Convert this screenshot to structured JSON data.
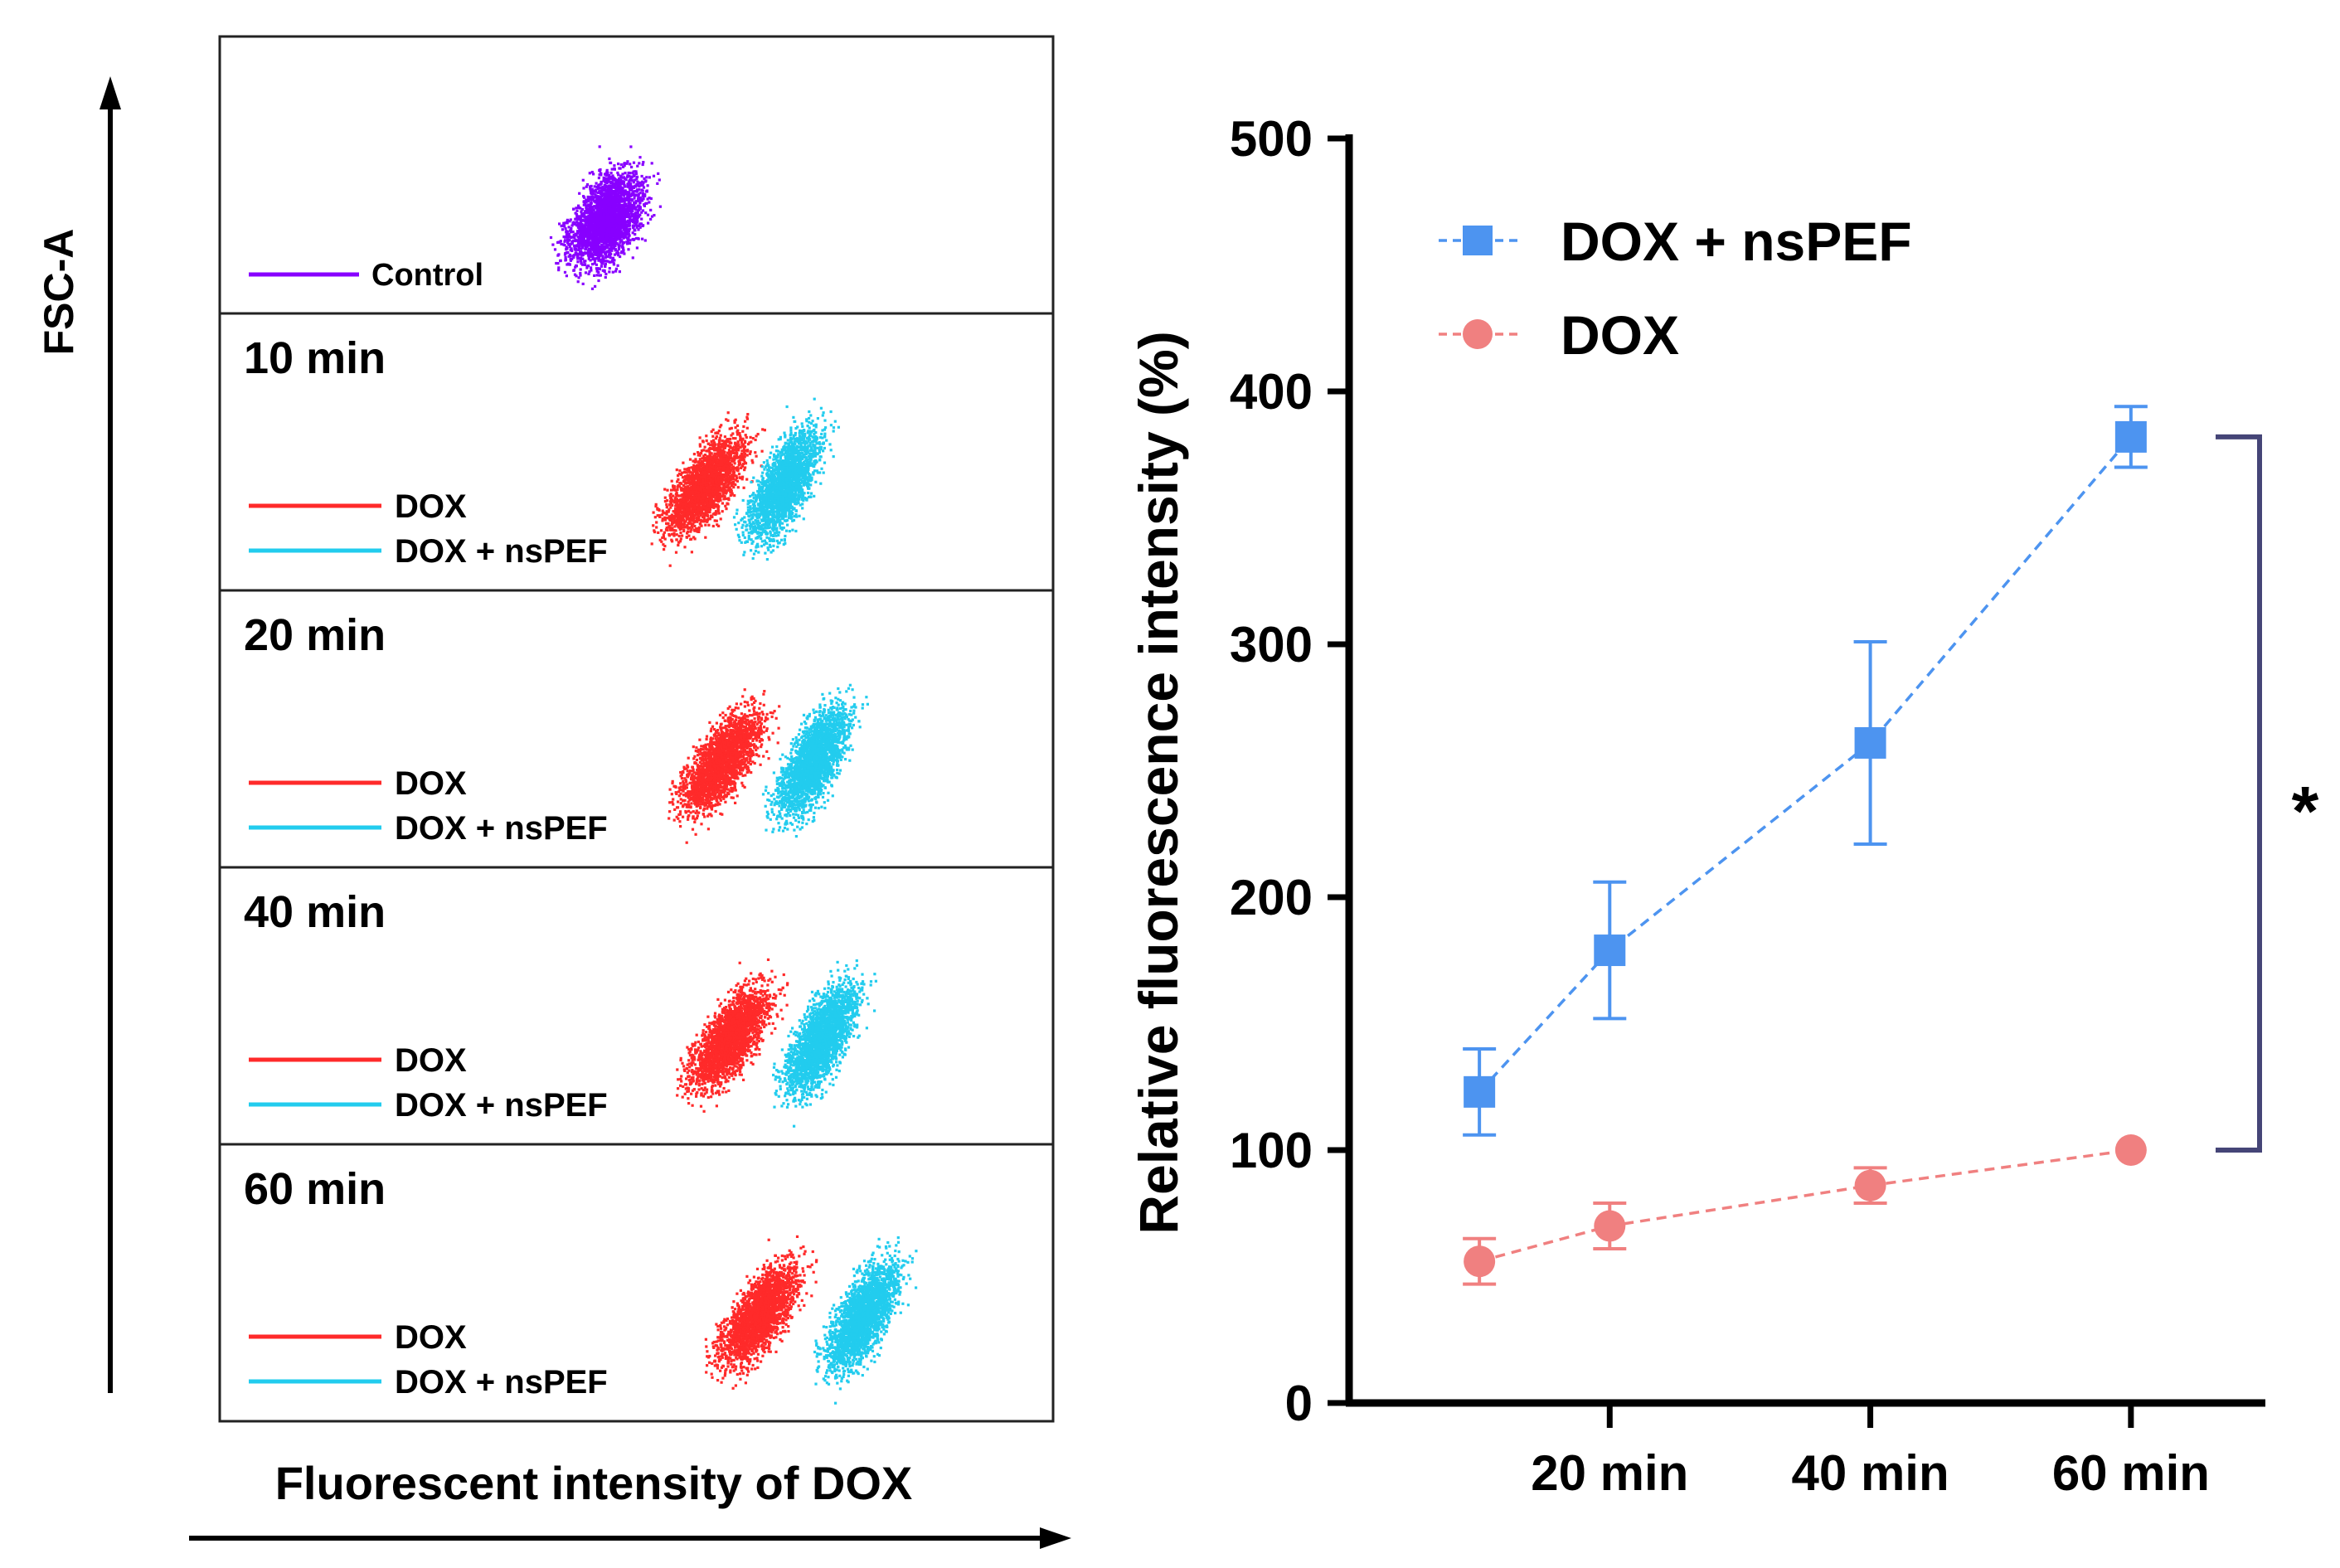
{
  "left_panel": {
    "y_axis_label": "FSC-A",
    "x_axis_label": "Fluorescent intensity of DOX",
    "panels": [
      {
        "time": "",
        "legend": [
          {
            "label": "Control",
            "color": "#8800ff"
          }
        ]
      },
      {
        "time": "10 min",
        "legend": [
          {
            "label": "DOX",
            "color": "#ff2a2a"
          },
          {
            "label": "DOX + nsPEF",
            "color": "#22ccee"
          }
        ]
      },
      {
        "time": "20 min",
        "legend": [
          {
            "label": "DOX",
            "color": "#ff2a2a"
          },
          {
            "label": "DOX + nsPEF",
            "color": "#22ccee"
          }
        ]
      },
      {
        "time": "40 min",
        "legend": [
          {
            "label": "DOX",
            "color": "#ff2a2a"
          },
          {
            "label": "DOX + nsPEF",
            "color": "#22ccee"
          }
        ]
      },
      {
        "time": "60 min",
        "legend": [
          {
            "label": "DOX",
            "color": "#ff2a2a"
          },
          {
            "label": "DOX + nsPEF",
            "color": "#22ccee"
          }
        ]
      }
    ]
  },
  "chart_data": {
    "type": "line",
    "title": "",
    "xlabel": "",
    "ylabel": "Relative fluorescence intensity (%)",
    "ylim": [
      0,
      500
    ],
    "yticks": [
      0,
      100,
      200,
      300,
      400,
      500
    ],
    "x": [
      10,
      20,
      40,
      60
    ],
    "xlim": [
      0,
      70
    ],
    "xtick_values": [
      20,
      40,
      60
    ],
    "xtick_labels": [
      "20 min",
      "40 min",
      "60 min"
    ],
    "series": [
      {
        "name": "DOX + nsPEF",
        "color": "#4d94f0",
        "marker": "square",
        "values": [
          123,
          179,
          261,
          382
        ],
        "errors": [
          17,
          27,
          40,
          12
        ]
      },
      {
        "name": "DOX",
        "color": "#f08080",
        "marker": "circle",
        "values": [
          56,
          70,
          86,
          100
        ],
        "errors": [
          9,
          9,
          7,
          0
        ]
      }
    ],
    "significance": {
      "from": 382,
      "to": 100,
      "label": "*",
      "color": "#454577"
    }
  }
}
